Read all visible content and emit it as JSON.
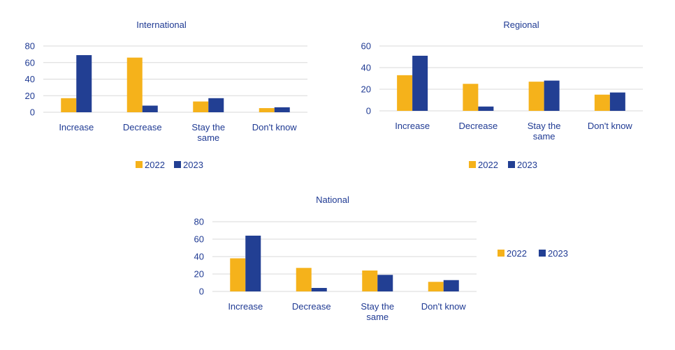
{
  "colors": {
    "s2022": "#f5b21b",
    "s2023": "#223f93",
    "text": "#1f3a93",
    "grid": "#d9d9d9"
  },
  "legend": [
    "2022",
    "2023"
  ],
  "chart_data": [
    {
      "type": "bar",
      "title": "International",
      "categories": [
        "Increase",
        "Decrease",
        "Stay the same",
        "Don't know"
      ],
      "category_lines": [
        [
          "Increase"
        ],
        [
          "Decrease"
        ],
        [
          "Stay the",
          "same"
        ],
        [
          "Don't know"
        ]
      ],
      "series": [
        {
          "name": "2022",
          "values": [
            17,
            66,
            13,
            5
          ]
        },
        {
          "name": "2023",
          "values": [
            69,
            8,
            17,
            6
          ]
        }
      ],
      "ylim": [
        0,
        80
      ],
      "yticks": [
        0,
        20,
        40,
        60,
        80
      ],
      "legend_position": "bottom"
    },
    {
      "type": "bar",
      "title": "Regional",
      "categories": [
        "Increase",
        "Decrease",
        "Stay the same",
        "Don't know"
      ],
      "category_lines": [
        [
          "Increase"
        ],
        [
          "Decrease"
        ],
        [
          "Stay the",
          "same"
        ],
        [
          "Don't know"
        ]
      ],
      "series": [
        {
          "name": "2022",
          "values": [
            33,
            25,
            27,
            15
          ]
        },
        {
          "name": "2023",
          "values": [
            51,
            4,
            28,
            17
          ]
        }
      ],
      "ylim": [
        0,
        60
      ],
      "yticks": [
        0,
        20,
        40,
        60
      ],
      "legend_position": "bottom"
    },
    {
      "type": "bar",
      "title": "National",
      "categories": [
        "Increase",
        "Decrease",
        "Stay the same",
        "Don't know"
      ],
      "category_lines": [
        [
          "Increase"
        ],
        [
          "Decrease"
        ],
        [
          "Stay the",
          "same"
        ],
        [
          "Don't know"
        ]
      ],
      "series": [
        {
          "name": "2022",
          "values": [
            38,
            27,
            24,
            11
          ]
        },
        {
          "name": "2023",
          "values": [
            64,
            4,
            19,
            13
          ]
        }
      ],
      "ylim": [
        0,
        80
      ],
      "yticks": [
        0,
        20,
        40,
        60,
        80
      ],
      "legend_position": "right"
    }
  ]
}
